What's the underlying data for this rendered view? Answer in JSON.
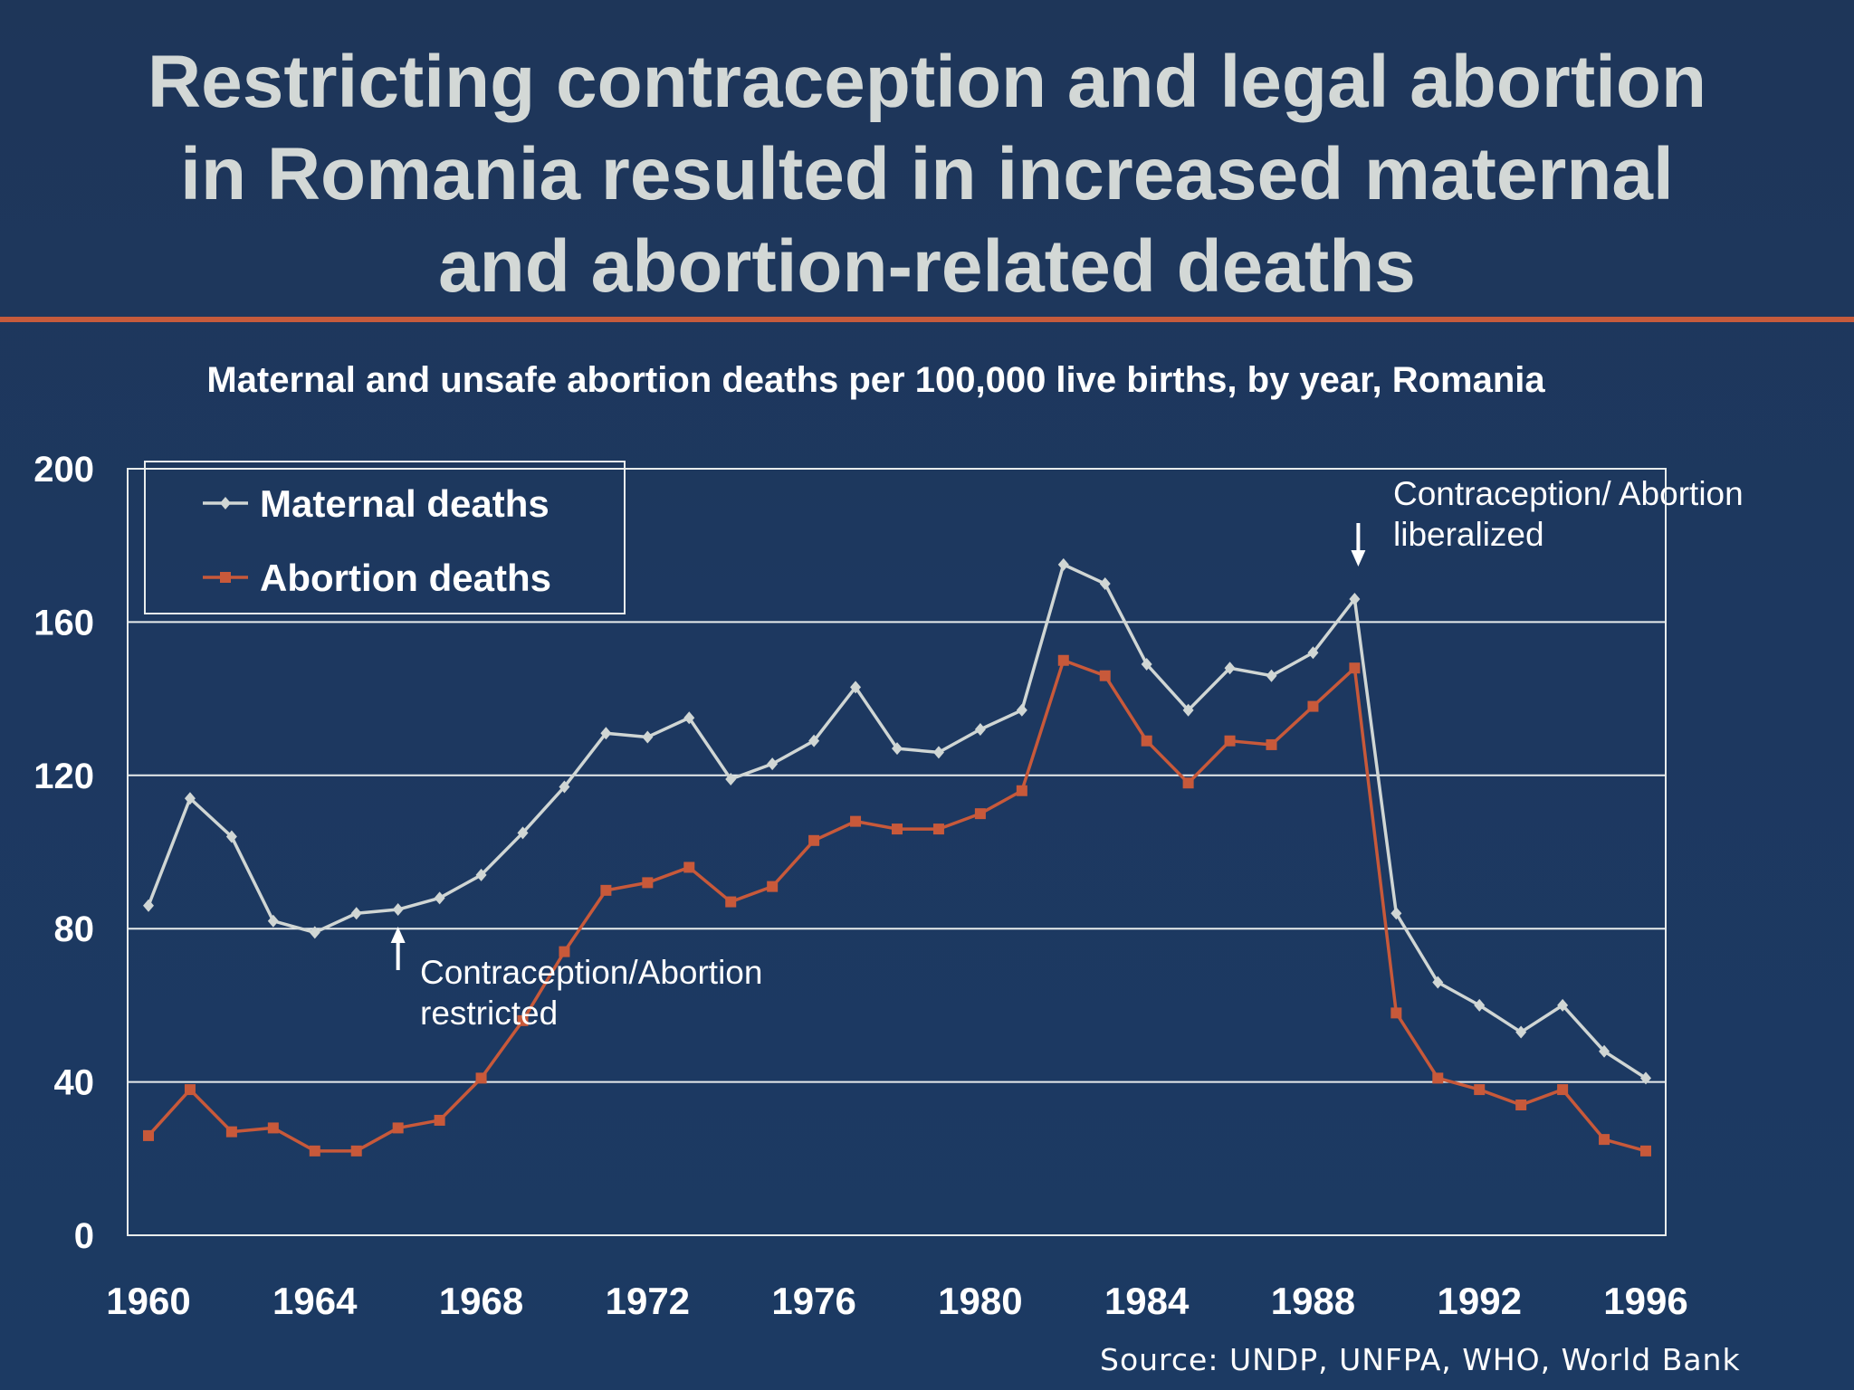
{
  "title": [
    "Restricting contraception and legal abortion",
    "in Romania resulted in increased maternal",
    "and abortion-related deaths"
  ],
  "source": "Source: UNDP, UNFPA, WHO, World Bank",
  "chart_data": {
    "type": "line",
    "title": "Maternal and unsafe abortion deaths per 100,000 live births, by year, Romania",
    "xlabel": "",
    "ylabel": "",
    "xlim": [
      1960,
      1996
    ],
    "ylim": [
      0,
      200
    ],
    "x_ticks": [
      "1960",
      "1964",
      "1968",
      "1972",
      "1976",
      "1980",
      "1984",
      "1988",
      "1992",
      "1996"
    ],
    "y_ticks": [
      "0",
      "40",
      "80",
      "120",
      "160",
      "200"
    ],
    "grid": "horizontal",
    "legend_position": "top-left",
    "x": [
      1960,
      1961,
      1962,
      1963,
      1964,
      1965,
      1966,
      1967,
      1968,
      1969,
      1970,
      1971,
      1972,
      1973,
      1974,
      1975,
      1976,
      1977,
      1978,
      1979,
      1980,
      1981,
      1982,
      1983,
      1984,
      1985,
      1986,
      1987,
      1988,
      1989,
      1990,
      1991,
      1992,
      1993,
      1994,
      1995,
      1996
    ],
    "series": [
      {
        "name": "Maternal deaths",
        "color": "#d0d6d4",
        "marker": "diamond",
        "values": [
          86,
          114,
          104,
          82,
          79,
          84,
          85,
          88,
          94,
          105,
          117,
          131,
          130,
          135,
          119,
          123,
          129,
          143,
          127,
          126,
          132,
          137,
          175,
          170,
          149,
          137,
          148,
          146,
          152,
          166,
          84,
          66,
          60,
          53,
          60,
          48,
          41
        ]
      },
      {
        "name": "Abortion deaths",
        "color": "#c8593a",
        "marker": "square",
        "values": [
          26,
          38,
          27,
          28,
          22,
          22,
          28,
          30,
          41,
          56,
          74,
          90,
          92,
          96,
          87,
          91,
          103,
          108,
          106,
          106,
          110,
          116,
          150,
          146,
          129,
          118,
          129,
          128,
          138,
          148,
          58,
          41,
          38,
          34,
          38,
          25,
          22
        ]
      }
    ],
    "annotations": [
      {
        "text": [
          "Contraception/Abortion",
          "restricted"
        ],
        "x": 1966,
        "y": 80,
        "arrow": "up"
      },
      {
        "text": [
          "Contraception/ Abortion",
          "liberalized"
        ],
        "x": 1989,
        "y": 172,
        "arrow": "down"
      }
    ]
  }
}
